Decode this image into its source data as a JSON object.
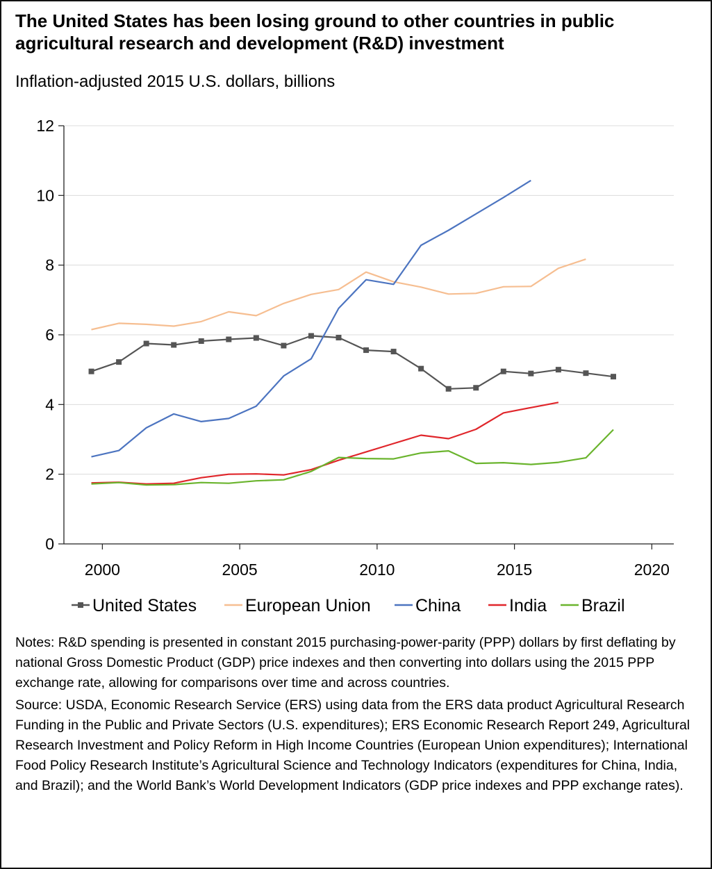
{
  "title": "The United States has been losing ground to other countries in public agricultural research and development (R&D) investment",
  "notes": "Notes: R&D spending is presented in constant 2015 purchasing-power-parity (PPP) dollars by first deflating by national Gross Domestic Product (GDP) price indexes and then converting into dollars using the 2015 PPP exchange rate, allowing for comparisons over time and across countries.",
  "source": "Source: USDA, Economic Research Service (ERS) using data from the ERS data product Agricultural Research Funding in the Public and Private Sectors (U.S. expenditures); ERS Economic Research Report 249, Agricultural Research Investment and Policy Reform in High Income Countries (European Union expenditures); International Food Policy Research Institute’s Agricultural Science and Technology Indicators (expenditures for China, India, and Brazil); and the World Bank’s World Development Indicators (GDP price indexes and PPP exchange rates).",
  "chart_data": {
    "type": "line",
    "ylabel": "Inflation-adjusted 2015 U.S. dollars, billions",
    "xlim": [
      1998.6,
      2020.8
    ],
    "ylim": [
      0,
      12
    ],
    "xticks": [
      2000,
      2005,
      2010,
      2015,
      2020
    ],
    "yticks": [
      0,
      2,
      4,
      6,
      8,
      10,
      12
    ],
    "grid": "horizontal",
    "legend_position": "bottom",
    "series": [
      {
        "name": "United States",
        "color": "#555555",
        "marker": "square",
        "x": [
          1999.6,
          2000.6,
          2001.6,
          2002.6,
          2003.6,
          2004.6,
          2005.6,
          2006.6,
          2007.6,
          2008.6,
          2009.6,
          2010.6,
          2011.6,
          2012.6,
          2013.6,
          2014.6,
          2015.6,
          2016.6,
          2017.6,
          2018.6
        ],
        "y": [
          4.95,
          5.22,
          5.75,
          5.71,
          5.82,
          5.87,
          5.91,
          5.69,
          5.97,
          5.92,
          5.56,
          5.52,
          5.03,
          4.45,
          4.48,
          4.95,
          4.89,
          5.0,
          4.9,
          4.8
        ]
      },
      {
        "name": "European Union",
        "color": "#F6BE91",
        "marker": "none",
        "x": [
          1999.6,
          2000.6,
          2001.6,
          2002.6,
          2003.6,
          2004.6,
          2005.6,
          2006.6,
          2007.6,
          2008.6,
          2009.6,
          2010.6,
          2011.6,
          2012.6,
          2013.6,
          2014.6,
          2015.6,
          2016.6,
          2017.6
        ],
        "y": [
          6.15,
          6.33,
          6.3,
          6.25,
          6.38,
          6.66,
          6.55,
          6.9,
          7.16,
          7.3,
          7.8,
          7.52,
          7.37,
          7.17,
          7.19,
          7.38,
          7.39,
          7.91,
          8.17
        ]
      },
      {
        "name": "China",
        "color": "#4C74C0",
        "marker": "none",
        "x": [
          1999.6,
          2000.6,
          2001.6,
          2002.6,
          2003.6,
          2004.6,
          2005.6,
          2006.6,
          2007.6,
          2008.6,
          2009.6,
          2010.6,
          2011.6,
          2012.6,
          2013.6,
          2014.6,
          2015.6
        ],
        "y": [
          2.5,
          2.68,
          3.33,
          3.73,
          3.51,
          3.6,
          3.95,
          4.82,
          5.31,
          6.76,
          7.58,
          7.45,
          8.57,
          9.0,
          9.47,
          9.94,
          10.43
        ]
      },
      {
        "name": "India",
        "color": "#E0262B",
        "marker": "none",
        "x": [
          1999.6,
          2000.6,
          2001.6,
          2002.6,
          2003.6,
          2004.6,
          2005.6,
          2006.6,
          2007.6,
          2008.6,
          2009.6,
          2010.6,
          2011.6,
          2012.6,
          2013.6,
          2014.6,
          2015.6,
          2016.6
        ],
        "y": [
          1.75,
          1.77,
          1.72,
          1.74,
          1.9,
          2.0,
          2.01,
          1.98,
          2.13,
          2.4,
          2.64,
          2.88,
          3.12,
          3.02,
          3.29,
          3.76,
          3.91,
          4.06
        ]
      },
      {
        "name": "Brazil",
        "color": "#6AB42D",
        "marker": "none",
        "x": [
          1999.6,
          2000.6,
          2001.6,
          2002.6,
          2003.6,
          2004.6,
          2005.6,
          2006.6,
          2007.6,
          2008.6,
          2009.6,
          2010.6,
          2011.6,
          2012.6,
          2013.6,
          2014.6,
          2015.6,
          2016.6,
          2017.6,
          2018.6
        ],
        "y": [
          1.72,
          1.76,
          1.69,
          1.7,
          1.76,
          1.74,
          1.81,
          1.84,
          2.08,
          2.48,
          2.45,
          2.44,
          2.61,
          2.67,
          2.31,
          2.33,
          2.28,
          2.34,
          2.47,
          3.28
        ]
      }
    ]
  }
}
